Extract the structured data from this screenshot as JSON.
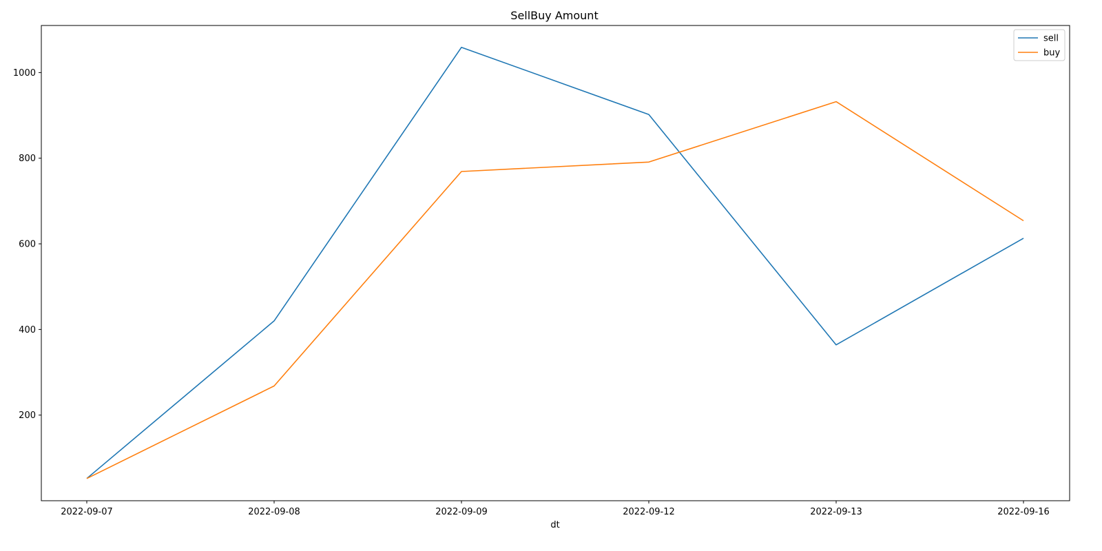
{
  "chart_data": {
    "type": "line",
    "title": "SellBuy Amount",
    "xlabel": "dt",
    "ylabel": "",
    "categories": [
      "2022-09-07",
      "2022-09-08",
      "2022-09-09",
      "2022-09-12",
      "2022-09-13",
      "2022-09-16"
    ],
    "series": [
      {
        "name": "sell",
        "color": "#1f77b4",
        "values": [
          52,
          420,
          1059,
          902,
          364,
          613
        ]
      },
      {
        "name": "buy",
        "color": "#ff7f0e",
        "values": [
          52,
          268,
          769,
          791,
          932,
          654
        ]
      }
    ],
    "ylim": [
      0,
      1110
    ],
    "yticks": [
      200,
      400,
      600,
      800,
      1000
    ],
    "grid": false,
    "legend_position": "top-right"
  }
}
